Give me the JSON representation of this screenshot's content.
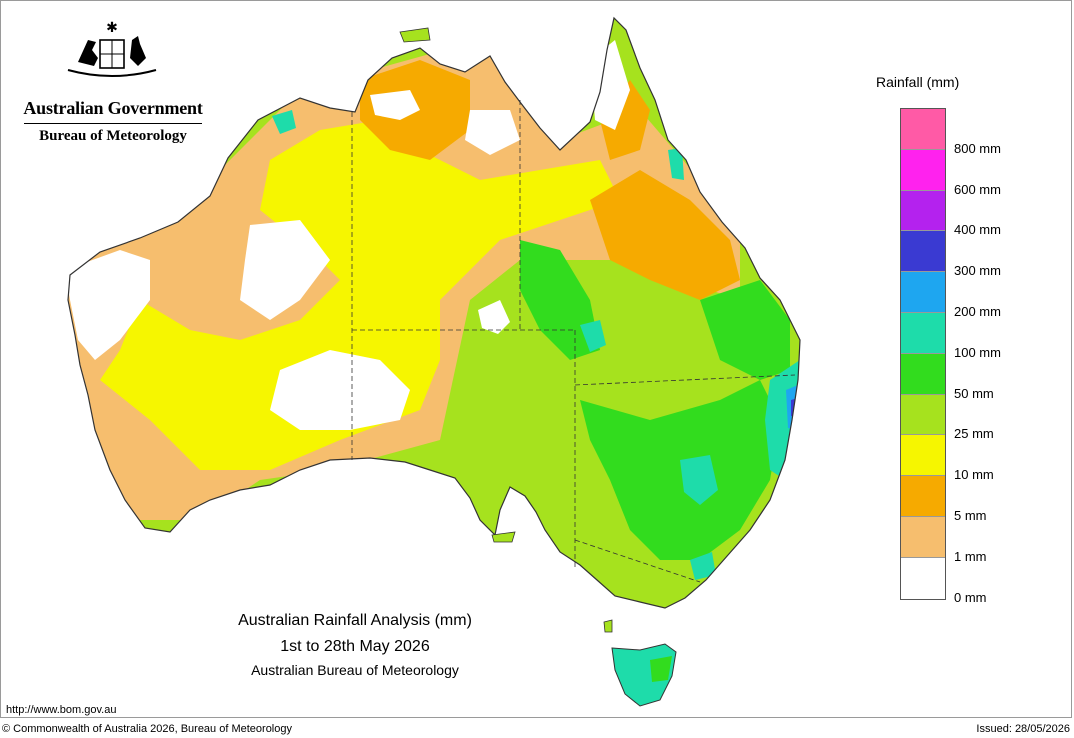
{
  "header": {
    "government": "Australian Government",
    "bureau": "Bureau of Meteorology"
  },
  "legend": {
    "title": "Rainfall (mm)",
    "bands": [
      {
        "color": "#ff5aa6"
      },
      {
        "color": "#ff22ee"
      },
      {
        "color": "#b422ee"
      },
      {
        "color": "#3a3ad2"
      },
      {
        "color": "#1ea6f0"
      },
      {
        "color": "#1edcaa"
      },
      {
        "color": "#32dc1e"
      },
      {
        "color": "#a6e21e"
      },
      {
        "color": "#f6f600"
      },
      {
        "color": "#f6aa00"
      },
      {
        "color": "#f6be6e"
      },
      {
        "color": "#ffffff"
      }
    ],
    "labels": [
      "800 mm",
      "600 mm",
      "400 mm",
      "300 mm",
      "200 mm",
      "100 mm",
      "50 mm",
      "25 mm",
      "10 mm",
      "5 mm",
      "1 mm",
      "0 mm"
    ]
  },
  "caption": {
    "title": "Australian Rainfall Analysis (mm)",
    "period": "1st to 28th May 2026",
    "source": "Australian Bureau of Meteorology"
  },
  "footer": {
    "url": "http://www.bom.gov.au",
    "copyright": "© Commonwealth of Australia 2026, Bureau of Meteorology",
    "issued": "Issued: 28/05/2026"
  },
  "map": {
    "colors": {
      "none": "#ffffff",
      "light": "#f6be6e",
      "moderate": "#f6aa00",
      "ten_to_25": "#f6f600",
      "25_to_50": "#a6e21e",
      "50_to_100": "#32dc1e",
      "100_to_200": "#1edcaa",
      "200_to_300": "#1ea6f0",
      "300_to_400": "#3a3ad2",
      "boundary": "#333333"
    }
  }
}
